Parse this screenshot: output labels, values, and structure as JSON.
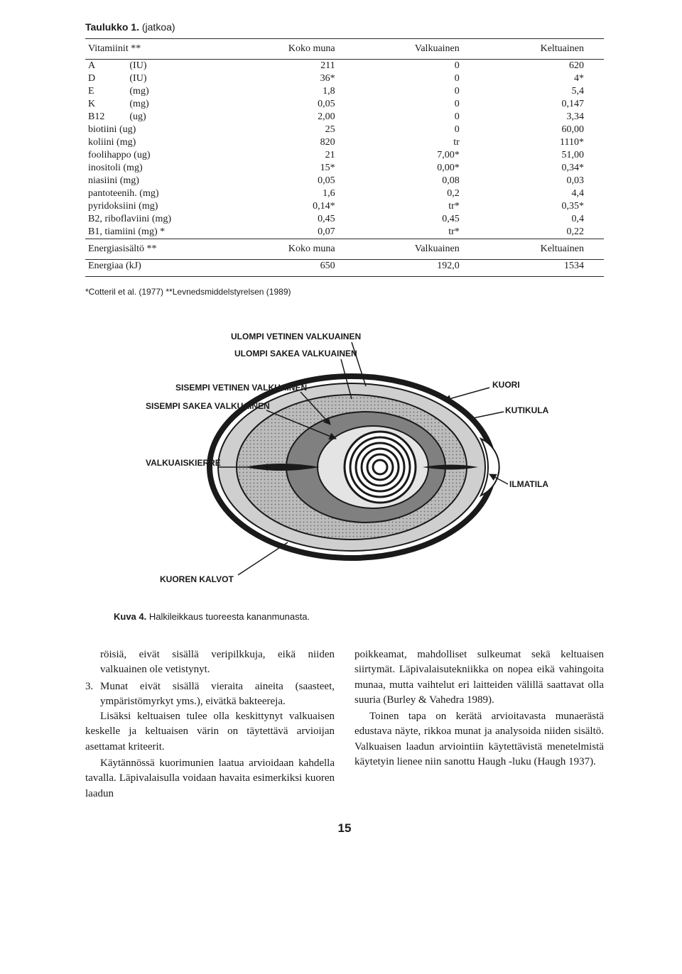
{
  "table": {
    "title_bold": "Taulukko 1.",
    "title_rest": " (jatkoa)",
    "header1": [
      "Vitamiinit **",
      "Koko muna",
      "Valkuainen",
      "Keltuainen"
    ],
    "rows": [
      [
        "A",
        "(IU)",
        "211",
        "0",
        "620"
      ],
      [
        "D",
        "(IU)",
        "36*",
        "0",
        "4*"
      ],
      [
        "E",
        "(mg)",
        "1,8",
        "0",
        "5,4"
      ],
      [
        "K",
        "(mg)",
        "0,05",
        "0",
        "0,147"
      ],
      [
        "B12",
        "(ug)",
        "2,00",
        "0",
        "3,34"
      ],
      [
        "biotiini (ug)",
        "",
        "25",
        "0",
        "60,00"
      ],
      [
        "koliini (mg)",
        "",
        "820",
        "tr",
        "1110*"
      ],
      [
        "foolihappo (ug)",
        "",
        "21",
        "7,00*",
        "51,00"
      ],
      [
        "inositoli (mg)",
        "",
        "15*",
        "0,00*",
        "0,34*"
      ],
      [
        "niasiini (mg)",
        "",
        "0,05",
        "0,08",
        "0,03"
      ],
      [
        "pantoteenih. (mg)",
        "",
        "1,6",
        "0,2",
        "4,4"
      ],
      [
        "pyridoksiini (mg)",
        "",
        "0,14*",
        "tr*",
        "0,35*"
      ],
      [
        "B2, riboflaviini (mg)",
        "",
        "0,45",
        "0,45",
        "0,4"
      ],
      [
        "B1, tiamiini (mg) *",
        "",
        "0,07",
        "tr*",
        "0,22"
      ]
    ],
    "header2": [
      "Energiasisältö **",
      "Koko muna",
      "Valkuainen",
      "Keltuainen"
    ],
    "energy_row": [
      "Energiaa (kJ)",
      "650",
      "192,0",
      "1534"
    ],
    "footnote": "*Cotteril et al. (1977) **Levnedsmiddelstyrelsen (1989)"
  },
  "figure": {
    "labels": {
      "l1": "ULOMPI VETINEN VALKUAINEN",
      "l2": "ULOMPI SAKEA VALKUAINEN",
      "l3": "SISEMPI VETINEN VALKUAINEN",
      "l4": "SISEMPI SAKEA VALKUAINEN",
      "l5": "VALKUAISKIERRE",
      "l6": "KUOREN KALVOT",
      "r1": "KUORI",
      "r2": "KUTIKULA",
      "r3": "ILMATILA"
    },
    "caption_bold": "Kuva 4.",
    "caption_rest": " Halkileikkaus tuoreesta kananmunasta.",
    "colors": {
      "outline": "#1a1a1a",
      "shell": "#ffffff",
      "outer_thin": "#bfbfbf",
      "outer_thick": "#9a9a9a",
      "inner_thin": "#777777",
      "inner_thick": "#d8d8d8",
      "yolk_ring": "#1a1a1a",
      "air": "#ffffff"
    }
  },
  "body": {
    "left": {
      "p1": "röisiä, eivät sisällä veripilkkuja, eikä niiden valkuainen ole vetistynyt.",
      "li3_num": "3.",
      "li3": "Munat eivät sisällä vieraita aineita (saasteet, ympäristömyrkyt yms.), eivätkä bakteereja.",
      "p2": "Lisäksi keltuaisen tulee olla keskittynyt valkuaisen keskelle ja keltuaisen värin on täytettävä arvioijan asettamat kriteerit.",
      "p3": "Käytännössä kuorimunien laatua arvioidaan kahdella tavalla. Läpivalaisulla voidaan havaita esimerkiksi kuoren laadun"
    },
    "right": {
      "p1": "poikkeamat, mahdolliset sulkeumat sekä keltuaisen siirtymät. Läpivalaisutekniikka on nopea eikä vahingoita munaa, mutta vaihtelut eri laitteiden välillä saattavat olla suuria (Burley & Vahedra 1989).",
      "p2": "Toinen tapa on kerätä arvioitavasta munaerästä edustava näyte, rikkoa munat ja analysoida niiden sisältö. Valkuaisen laadun arviointiin käytettävistä menetelmistä käytetyin lienee niin sanottu Haugh -luku (Haugh 1937)."
    }
  },
  "pagenum": "15"
}
